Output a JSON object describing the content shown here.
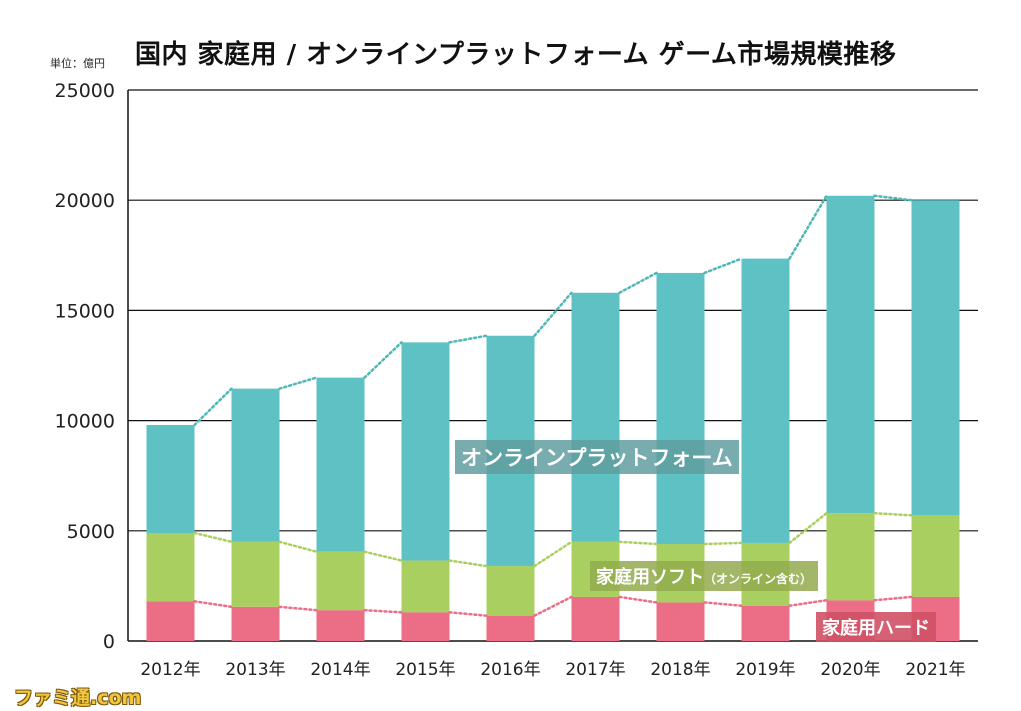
{
  "title": "国内 家庭用 / オンラインプラットフォーム ゲーム市場規模推移",
  "unit": "単位：億円",
  "watermark": "ファミ通.com",
  "labels": {
    "online": "オンラインプラットフォーム",
    "soft": "家庭用ソフト",
    "soft_note": "（オンライン含む）",
    "hard": "家庭用ハード"
  },
  "colors": {
    "online": "#5ec2c4",
    "soft": "#a8cf5f",
    "hard": "#eb6e86",
    "online_dots": "#4fb7b6",
    "soft_dots": "#a8cf5f",
    "hard_dots": "#eb6e86",
    "grid": "#111111"
  },
  "chart_data": {
    "type": "bar",
    "stacked": true,
    "categories": [
      "2012年",
      "2013年",
      "2014年",
      "2015年",
      "2016年",
      "2017年",
      "2018年",
      "2019年",
      "2020年",
      "2021年"
    ],
    "series": [
      {
        "name": "家庭用ハード",
        "values": [
          1800,
          1550,
          1400,
          1300,
          1150,
          2000,
          1750,
          1600,
          1850,
          2000
        ]
      },
      {
        "name": "家庭用ソフト（オンライン含む）",
        "values": [
          3100,
          2950,
          2650,
          2350,
          2250,
          2500,
          2650,
          2850,
          3950,
          3700
        ]
      },
      {
        "name": "オンラインプラットフォーム",
        "values": [
          4900,
          6950,
          7900,
          9900,
          10450,
          11300,
          12300,
          12900,
          14400,
          14300
        ]
      }
    ],
    "ylim": [
      0,
      25000
    ],
    "yticks": [
      0,
      5000,
      10000,
      15000,
      20000,
      25000
    ],
    "grid": true
  }
}
